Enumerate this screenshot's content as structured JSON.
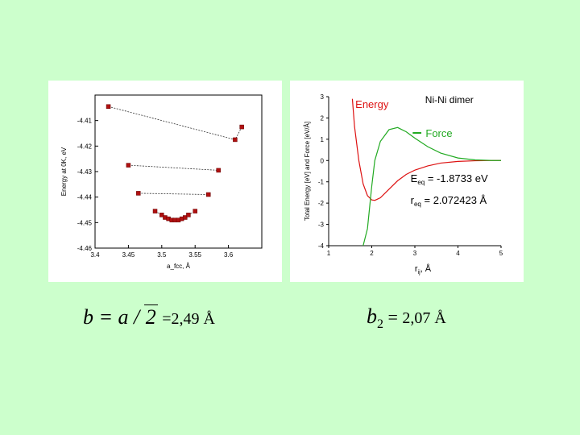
{
  "chart_data": [
    {
      "type": "scatter",
      "title": "",
      "xlabel": "a_fcc, Å",
      "ylabel": "Energy at 0K, eV",
      "xlim": [
        3.4,
        3.65
      ],
      "ylim": [
        -4.46,
        -4.4
      ],
      "xticks": [
        "3.4",
        "3.45",
        "3.5",
        "3.55",
        "3.6"
      ],
      "yticks": [
        "-4.41",
        "-4.42",
        "-4.43",
        "-4.44",
        "-4.45",
        "-4.46"
      ],
      "grid": false,
      "series": [
        {
          "points": [
            [
              3.42,
              -4.4045
            ],
            [
              3.61,
              -4.4175
            ],
            [
              3.62,
              -4.4125
            ]
          ]
        },
        {
          "points": [
            [
              3.45,
              -4.4275
            ],
            [
              3.585,
              -4.4295
            ]
          ]
        },
        {
          "points": [
            [
              3.465,
              -4.4385
            ],
            [
              3.57,
              -4.439
            ]
          ]
        },
        {
          "points": [
            [
              3.49,
              -4.4455
            ],
            [
              3.5,
              -4.447
            ],
            [
              3.505,
              -4.448
            ],
            [
              3.51,
              -4.4485
            ],
            [
              3.515,
              -4.449
            ],
            [
              3.52,
              -4.449
            ],
            [
              3.525,
              -4.449
            ],
            [
              3.53,
              -4.4485
            ],
            [
              3.535,
              -4.448
            ],
            [
              3.54,
              -4.447
            ],
            [
              3.55,
              -4.4455
            ]
          ]
        }
      ]
    },
    {
      "type": "line",
      "title": "Ni-Ni dimer",
      "xlabel": "r_ij, Å",
      "ylabel": "Total Energy [eV] and Force [eV/Å]",
      "xlim": [
        1,
        5
      ],
      "ylim": [
        -4,
        3
      ],
      "xticks": [
        "1",
        "2",
        "3",
        "4",
        "5",
        "6"
      ],
      "yticks": [
        "3",
        "2",
        "1",
        "0",
        "-1",
        "-2",
        "-3",
        "-4"
      ],
      "grid": false,
      "legend": "top-right",
      "series": [
        {
          "name": "Energy",
          "color": "#dd1111",
          "x": [
            1.55,
            1.6,
            1.7,
            1.8,
            1.9,
            2.0,
            2.07,
            2.2,
            2.4,
            2.6,
            2.8,
            3.0,
            3.3,
            3.6,
            4.0,
            4.4,
            4.8,
            5.0
          ],
          "y": [
            2.9,
            1.6,
            0.0,
            -1.1,
            -1.65,
            -1.85,
            -1.87,
            -1.75,
            -1.35,
            -0.95,
            -0.65,
            -0.45,
            -0.25,
            -0.12,
            -0.04,
            -0.01,
            0.0,
            0.0
          ]
        },
        {
          "name": "Force",
          "color": "#22aa22",
          "x": [
            1.8,
            1.9,
            2.0,
            2.07,
            2.2,
            2.4,
            2.6,
            2.8,
            3.0,
            3.3,
            3.6,
            4.0,
            4.4,
            4.8,
            5.0
          ],
          "y": [
            -4.0,
            -3.2,
            -1.2,
            0.0,
            0.9,
            1.45,
            1.55,
            1.35,
            1.05,
            0.65,
            0.35,
            0.12,
            0.03,
            0.0,
            0.0
          ]
        }
      ],
      "annotations": {
        "eeq_label": "E",
        "eeq_sub": "eq",
        "eeq_value": "= -1.8733 eV",
        "req_label": "r",
        "req_sub": "eq",
        "req_value": "= 2.072423 Å"
      }
    }
  ],
  "formulas": {
    "left_math": "b = a /",
    "left_sqrt": "2",
    "left_value": "=2,49 Å",
    "right_math": "b",
    "right_sub": "2",
    "right_eq": " = ",
    "right_value": "2,07 Å"
  }
}
